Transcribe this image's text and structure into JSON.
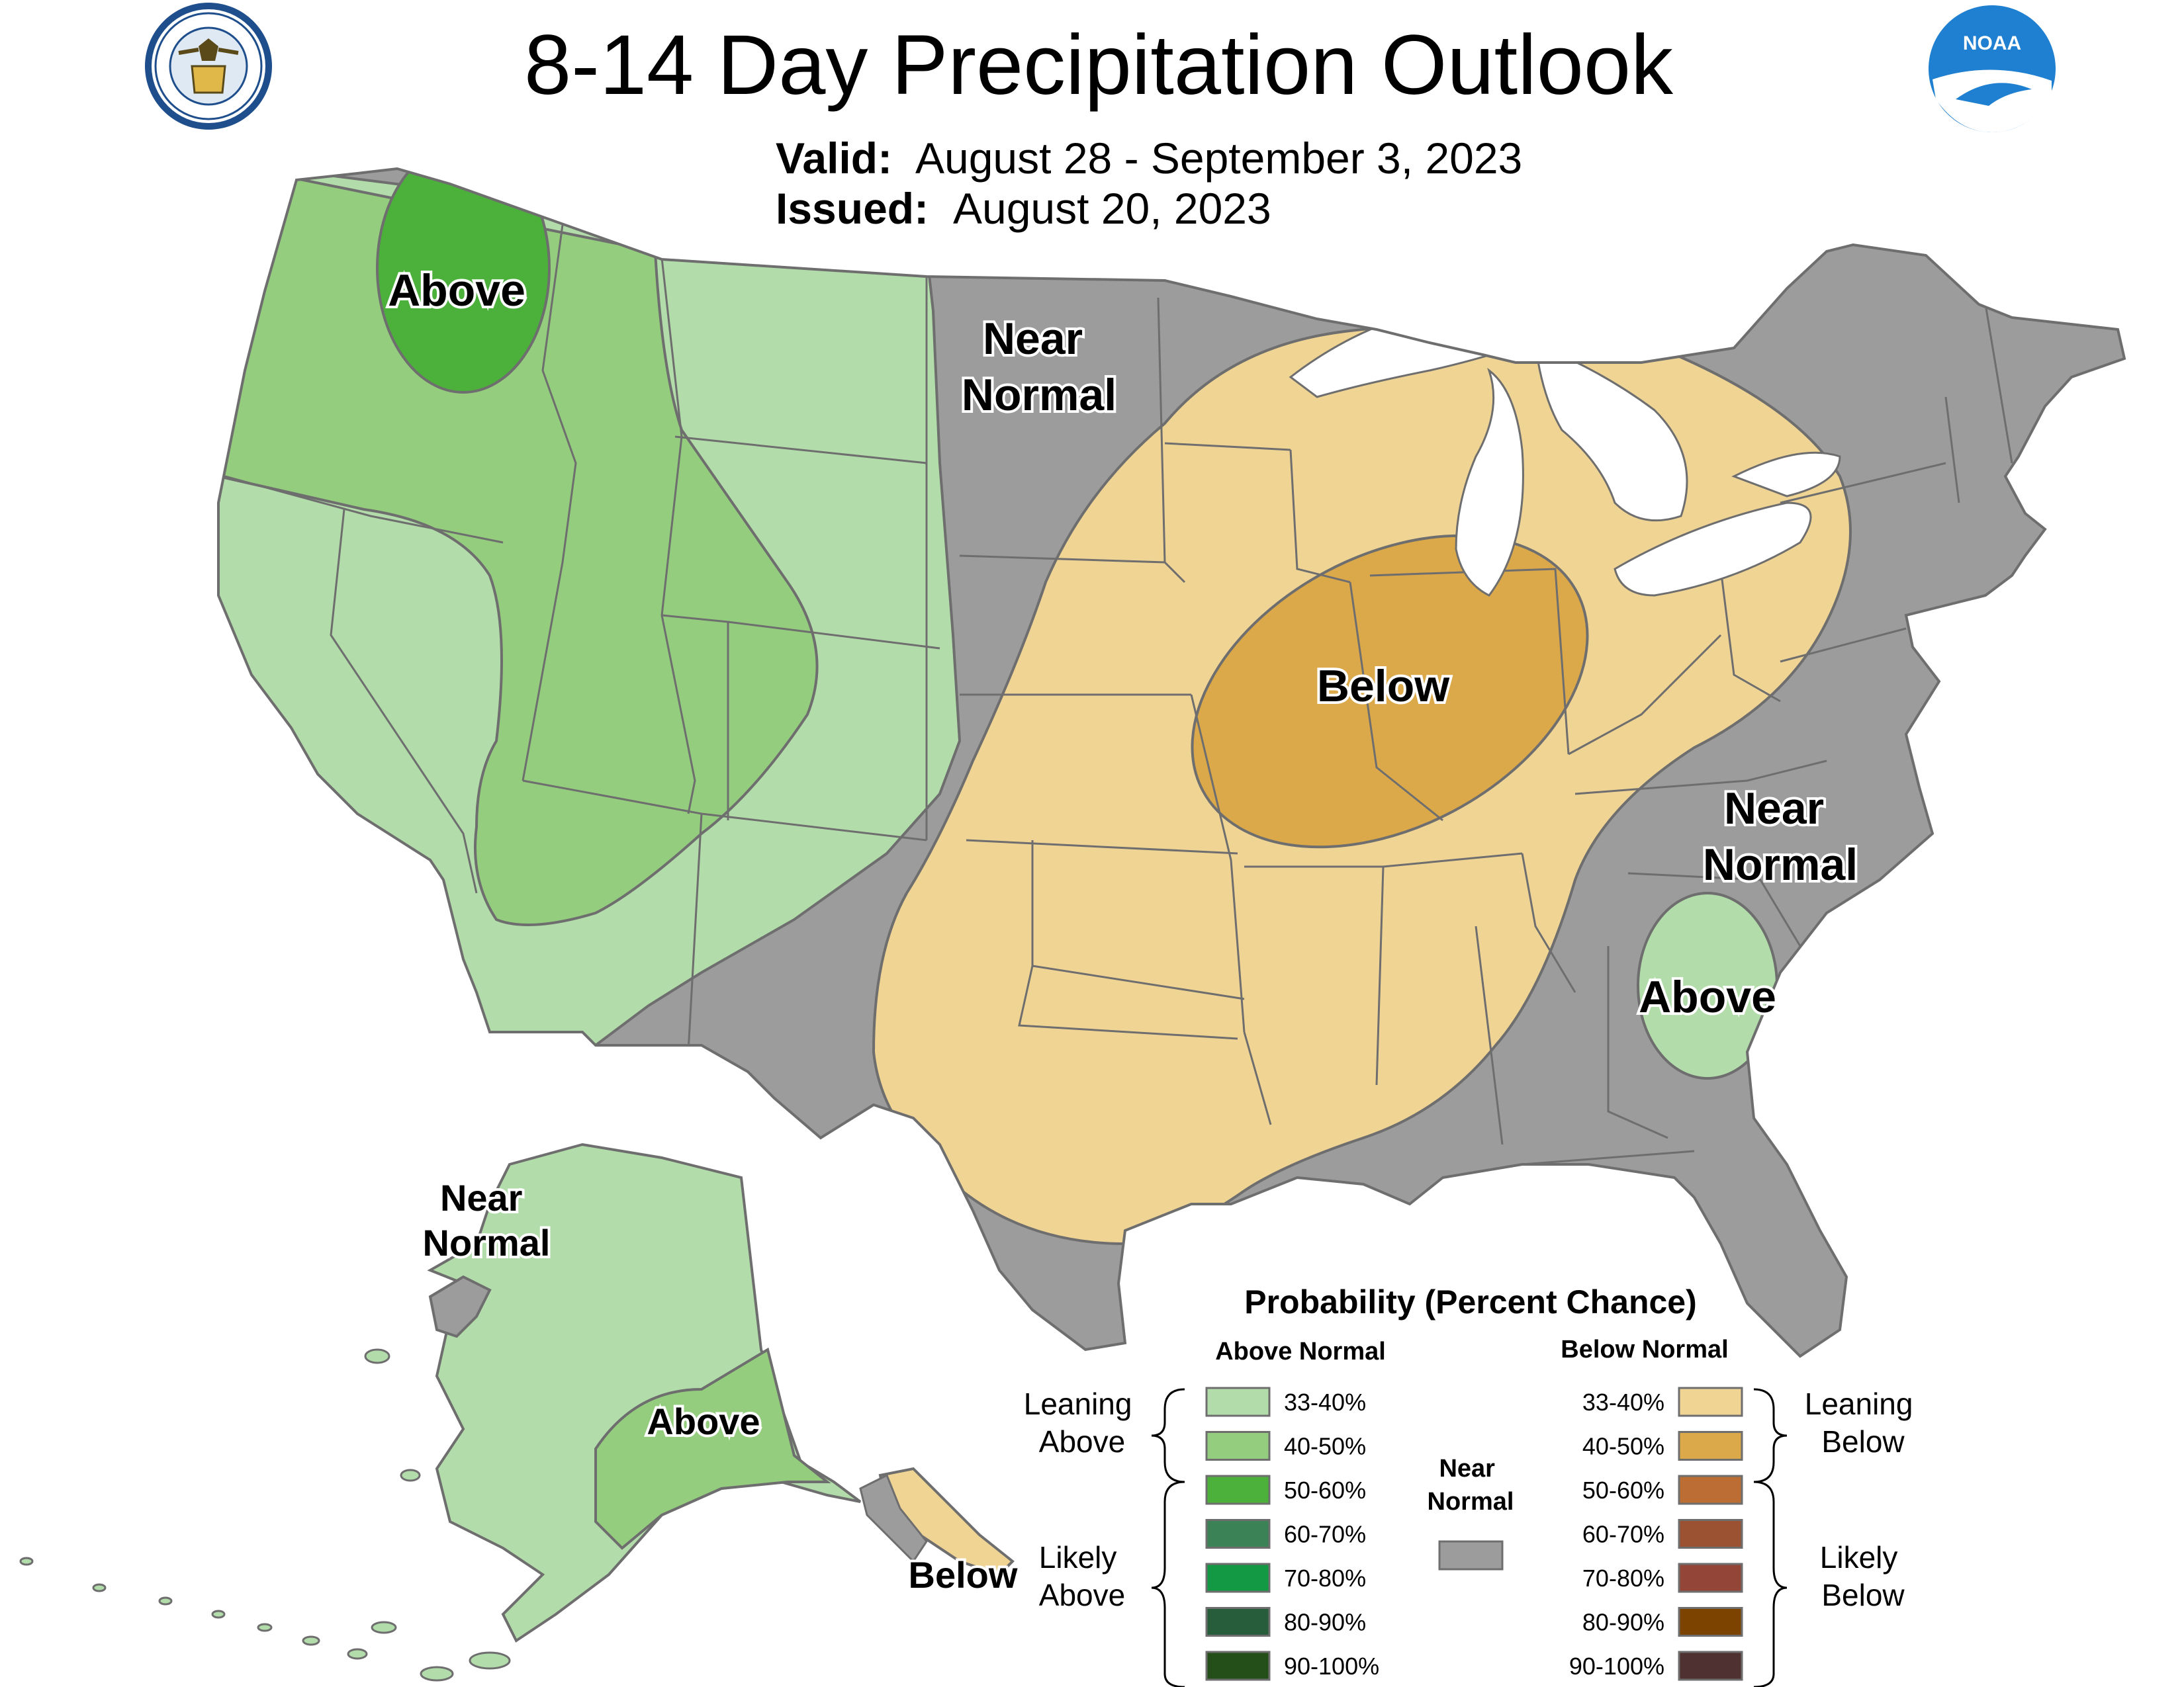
{
  "header": {
    "title": "8-14 Day Precipitation Outlook",
    "valid_label": "Valid:",
    "valid_value": "August 28 - September 3, 2023",
    "issued_label": "Issued:",
    "issued_value": "August 20, 2023"
  },
  "logos": {
    "doc_seal": "department-of-commerce-seal",
    "noaa": "NOAA"
  },
  "colors": {
    "land_outline": "#6e6e6e",
    "near_normal": "#9c9c9c",
    "above_33_40": "#b2dcaa",
    "above_40_50": "#94cd7e",
    "above_50_60": "#4cb13b",
    "below_33_40": "#f0d494",
    "below_40_50": "#dba84a",
    "lakes": "#ffffff"
  },
  "map_labels": {
    "conus_near_normal_north": [
      "Near",
      "Normal"
    ],
    "conus_near_normal_southeast": [
      "Near",
      "Normal"
    ],
    "conus_above_northwest": "Above",
    "conus_above_southeast": "Above",
    "conus_below_midwest": "Below",
    "alaska_near_normal": [
      "Near",
      "Normal"
    ],
    "alaska_above": "Above",
    "alaska_below": "Below"
  },
  "legend": {
    "title": "Probability (Percent Chance)",
    "above_header": "Above Normal",
    "below_header": "Below Normal",
    "near_header": [
      "Near",
      "Normal"
    ],
    "leaning_above": [
      "Leaning",
      "Above"
    ],
    "likely_above": [
      "Likely",
      "Above"
    ],
    "leaning_below": [
      "Leaning",
      "Below"
    ],
    "likely_below": [
      "Likely",
      "Below"
    ],
    "above_classes": [
      {
        "label": "33-40%",
        "color": "#b2dcaa"
      },
      {
        "label": "40-50%",
        "color": "#94cd7e"
      },
      {
        "label": "50-60%",
        "color": "#4cb13b"
      },
      {
        "label": "60-70%",
        "color": "#3b8356"
      },
      {
        "label": "70-80%",
        "color": "#139843"
      },
      {
        "label": "80-90%",
        "color": "#285d3c"
      },
      {
        "label": "90-100%",
        "color": "#254f18"
      }
    ],
    "below_classes": [
      {
        "label": "33-40%",
        "color": "#f0d494"
      },
      {
        "label": "40-50%",
        "color": "#dba84a"
      },
      {
        "label": "50-60%",
        "color": "#bb6d33"
      },
      {
        "label": "60-70%",
        "color": "#9b5232"
      },
      {
        "label": "70-80%",
        "color": "#934638"
      },
      {
        "label": "80-90%",
        "color": "#7c4200"
      },
      {
        "label": "90-100%",
        "color": "#4e3130"
      }
    ],
    "near_color": "#9c9c9c"
  }
}
